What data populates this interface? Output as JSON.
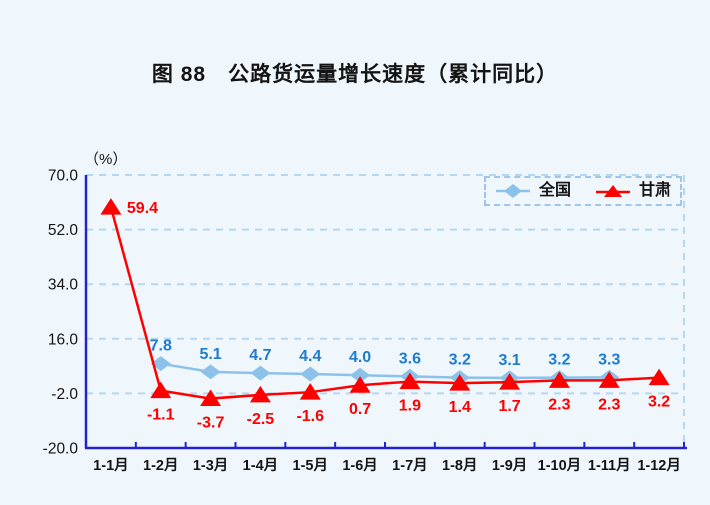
{
  "page": {
    "background": "#EFF7FD"
  },
  "title": "图 88　公路货运量增长速度（累计同比）",
  "chart_data": {
    "type": "line",
    "title": "图 88　公路货运量增长速度（累计同比）",
    "unit_label": "（%）",
    "categories": [
      "1-1月",
      "1-2月",
      "1-3月",
      "1-4月",
      "1-5月",
      "1-6月",
      "1-7月",
      "1-8月",
      "1-9月",
      "1-10月",
      "1-11月",
      "1-12月"
    ],
    "series": [
      {
        "name": "全国",
        "marker": "diamond",
        "color": "#8CC2E9",
        "label_color": "#1E7CCE",
        "label_position": "above",
        "values": [
          null,
          7.8,
          5.1,
          4.7,
          4.4,
          4.0,
          3.6,
          3.2,
          3.1,
          3.2,
          3.3,
          null
        ]
      },
      {
        "name": "甘肃",
        "marker": "triangle",
        "color": "#FF0000",
        "label_color": "#FF0000",
        "label_position": "below",
        "label_overrides": {
          "0": "right"
        },
        "values": [
          59.4,
          -1.1,
          -3.7,
          -2.5,
          -1.6,
          0.7,
          1.9,
          1.4,
          1.7,
          2.3,
          2.3,
          3.2
        ]
      }
    ],
    "ylim": [
      -20,
      70
    ],
    "yticks": [
      70.0,
      52.0,
      34.0,
      16.0,
      -2.0,
      -20.0
    ],
    "grid": true,
    "legend_position": "top-right",
    "axis_color": "#2222CE",
    "grid_color": "#B6D7F1",
    "tick_label_color": "#141414"
  }
}
